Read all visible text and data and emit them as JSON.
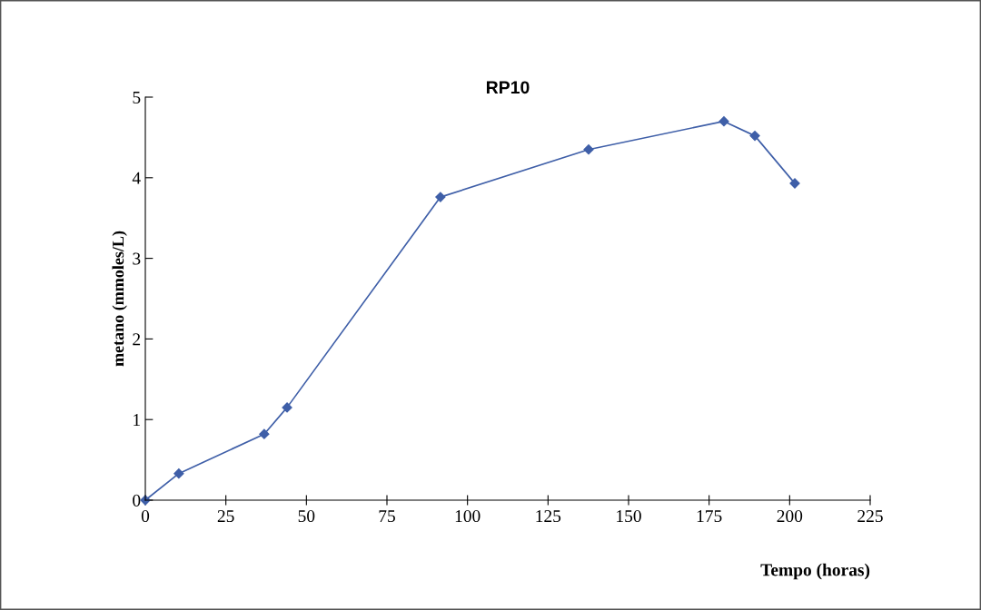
{
  "chart_data": {
    "type": "line",
    "title": "RP10",
    "xlabel": "Tempo (horas)",
    "ylabel": "metano (mmoles/L)",
    "x": [
      0,
      10.4,
      36.9,
      44,
      91.6,
      137.6,
      179.6,
      189.2,
      201.6
    ],
    "series": [
      {
        "color": "#3f5fa8",
        "values": [
          0,
          0.33,
          0.82,
          1.15,
          3.76,
          4.35,
          4.7,
          4.52,
          3.93
        ]
      }
    ],
    "xlim": [
      0,
      225
    ],
    "xticks": [
      0,
      25,
      50,
      75,
      100,
      125,
      150,
      175,
      200,
      225
    ],
    "ylim": [
      0,
      5
    ],
    "yticks": [
      0,
      1,
      2,
      3,
      4,
      5
    ],
    "grid": false,
    "legend": false,
    "marker": "diamond",
    "line_style": "solid"
  }
}
